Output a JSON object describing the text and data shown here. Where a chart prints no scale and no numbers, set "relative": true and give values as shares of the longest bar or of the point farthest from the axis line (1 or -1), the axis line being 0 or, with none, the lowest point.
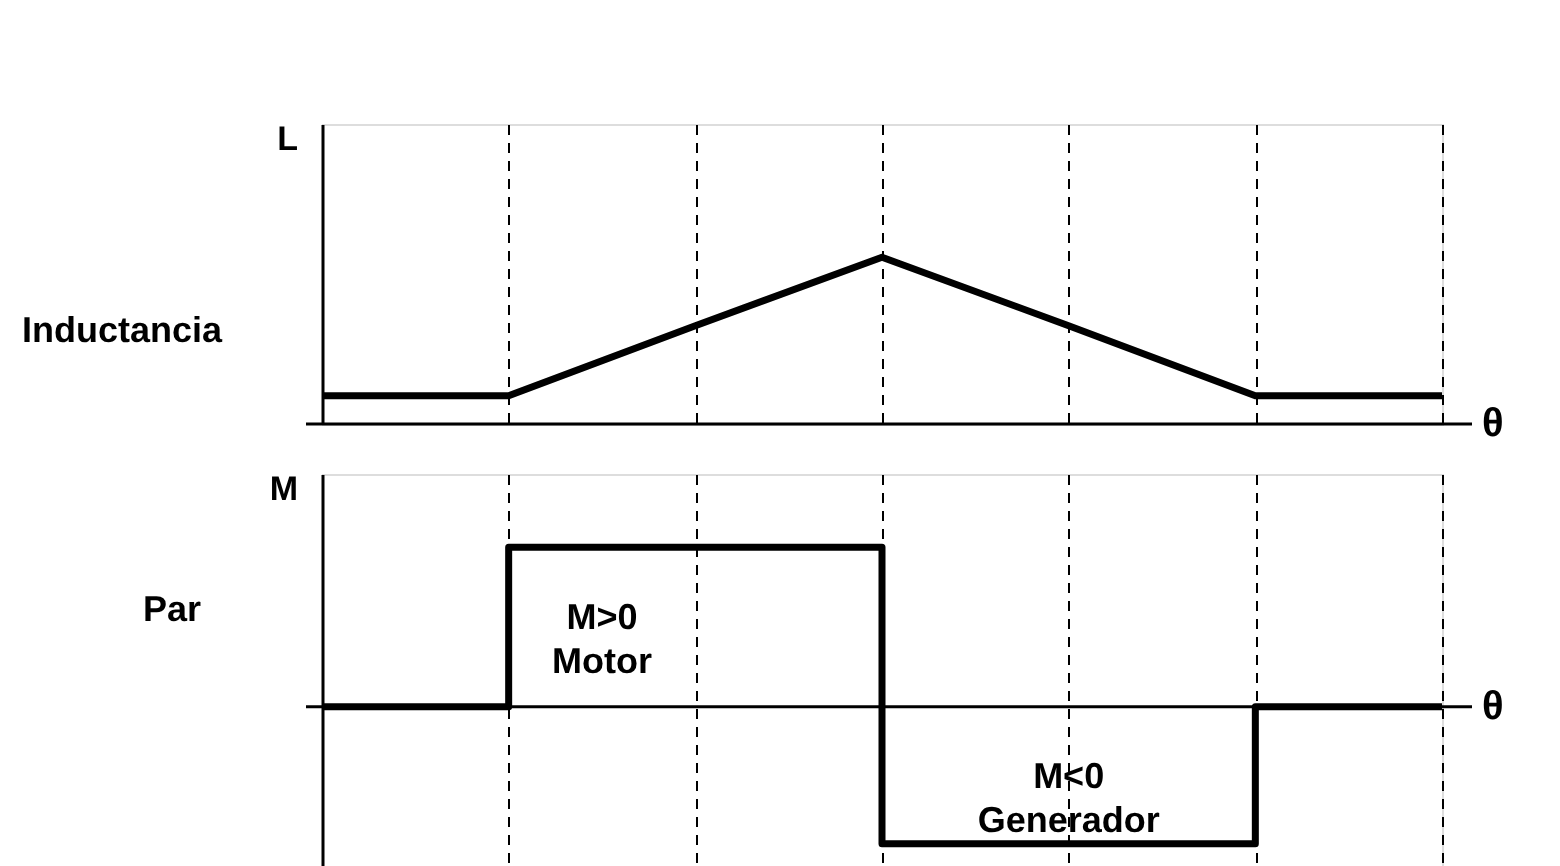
{
  "chart_data": [
    {
      "type": "line",
      "relative": true,
      "ylabel": "L",
      "xlabel": "θ",
      "grid": "x",
      "line_style": "solid",
      "categories": [
        null,
        null,
        null,
        null,
        null,
        null,
        null
      ],
      "series": [
        {
          "color": "#000000",
          "values": [
            0.17,
            0.17,
            0.59,
            1,
            0.59,
            0.17,
            0.17
          ]
        }
      ],
      "annotations": [
        "Inductancia"
      ]
    },
    {
      "type": "step",
      "relative": true,
      "ylabel": "M",
      "xlabel": "θ",
      "grid": "x",
      "line_style": "solid",
      "categories": [
        null,
        null,
        null,
        null,
        null,
        null,
        null
      ],
      "series": [
        {
          "color": "#000000",
          "values": [
            0,
            1,
            1,
            -0.86,
            -0.86,
            0,
            0
          ]
        }
      ],
      "annotations": [
        "Par",
        "M>0\nMotor",
        "M<0\nGenerador"
      ]
    }
  ]
}
